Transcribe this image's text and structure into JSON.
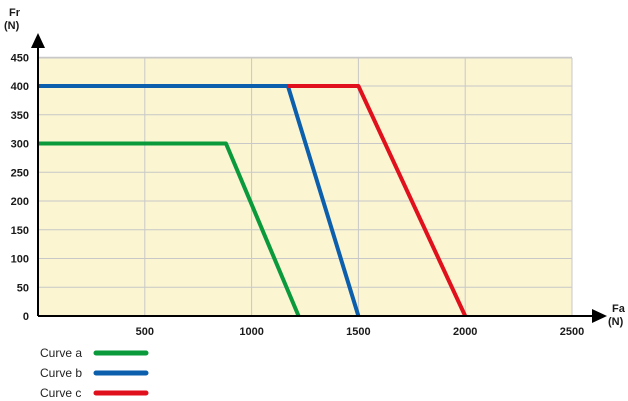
{
  "chart_data": {
    "type": "line",
    "y_axis": {
      "label_line1": "Fr",
      "label_line2": "(N)",
      "range": [
        0,
        470
      ],
      "ticks": [
        0,
        50,
        100,
        150,
        200,
        250,
        300,
        350,
        400,
        450
      ]
    },
    "x_axis": {
      "label_line1": "Fa",
      "label_line2": "(N)",
      "range": [
        0,
        2500
      ],
      "ticks": [
        500,
        1000,
        1500,
        2000,
        2500
      ]
    },
    "grid": true,
    "plot_background": "#fbf5d2",
    "grid_color": "#c8c8c8",
    "legend_position": "bottom-left",
    "series": [
      {
        "name": "Curve a",
        "color": "#0a9a3c",
        "points": [
          [
            0,
            300
          ],
          [
            880,
            300
          ],
          [
            1220,
            0
          ]
        ]
      },
      {
        "name": "Curve b",
        "color": "#0b5fad",
        "points": [
          [
            0,
            400
          ],
          [
            1170,
            400
          ],
          [
            1500,
            0
          ]
        ]
      },
      {
        "name": "Curve c",
        "color": "#e0101c",
        "points": [
          [
            1170,
            400
          ],
          [
            1500,
            400
          ],
          [
            2000,
            0
          ]
        ]
      }
    ]
  }
}
